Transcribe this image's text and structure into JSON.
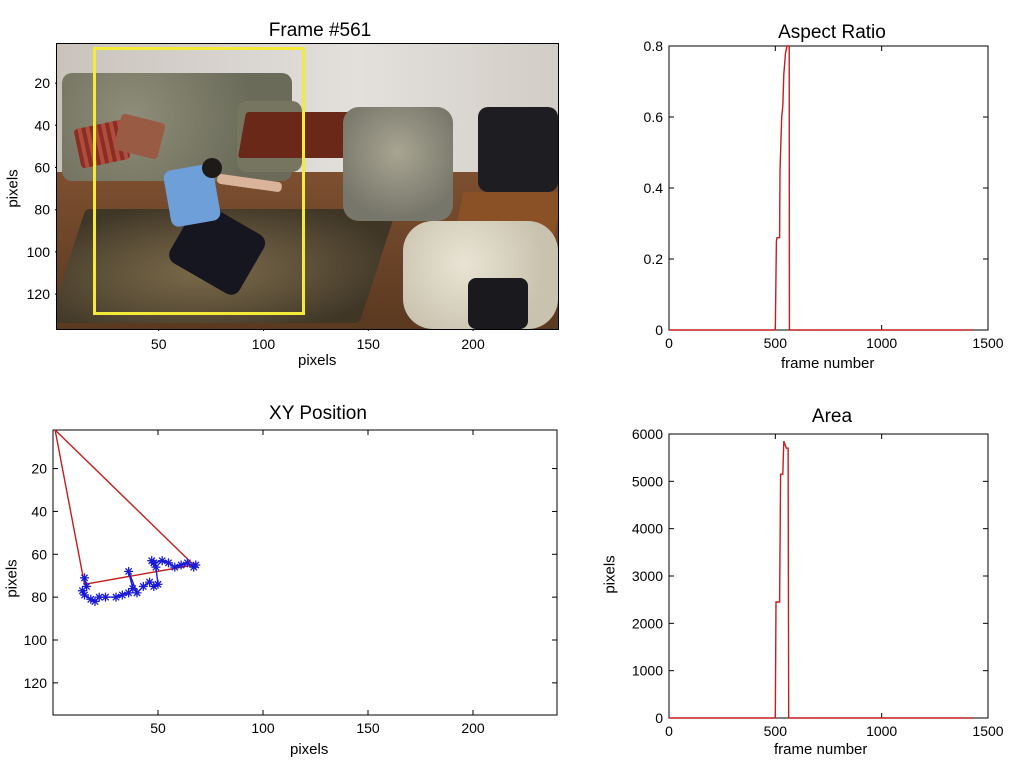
{
  "colors": {
    "line_red": "#c41e1e",
    "marker_blue": "#1a1ad6",
    "bbox_yellow": "#f3ea3a"
  },
  "frame_panel": {
    "title": "Frame #561",
    "xlabel": "pixels",
    "ylabel": "pixels",
    "xticks": [
      "50",
      "100",
      "150",
      "200"
    ],
    "yticks": [
      "20",
      "40",
      "60",
      "80",
      "100",
      "120"
    ]
  },
  "chart_data": [
    {
      "type": "line",
      "title": "Aspect Ratio",
      "xlabel": "frame number",
      "ylabel": "",
      "xlim": [
        0,
        1500
      ],
      "ylim": [
        0,
        0.8
      ],
      "xticks": [
        0,
        500,
        1000,
        1500
      ],
      "yticks": [
        0,
        0.2,
        0.4,
        0.6,
        0.8
      ],
      "grid": false,
      "series": [
        {
          "color": "#c41e1e",
          "x": [
            0,
            500,
            505,
            508,
            520,
            522,
            530,
            535,
            540,
            548,
            555,
            560,
            565,
            566,
            1430
          ],
          "y": [
            0,
            0,
            0.25,
            0.26,
            0.26,
            0.45,
            0.6,
            0.63,
            0.72,
            0.78,
            0.8,
            0.8,
            0.8,
            0,
            0
          ]
        }
      ]
    },
    {
      "type": "scatter",
      "title": "XY Position",
      "xlabel": "pixels",
      "ylabel": "pixels",
      "xlim": [
        0,
        240
      ],
      "ylim": [
        135,
        2
      ],
      "xticks": [
        50,
        100,
        150,
        200
      ],
      "yticks": [
        20,
        40,
        60,
        80,
        100,
        120
      ],
      "grid": false,
      "series": [
        {
          "color": "#c41e1e",
          "marker": "none",
          "x": [
            1,
            67,
            15,
            1
          ],
          "y": [
            2,
            65,
            74,
            2
          ]
        },
        {
          "color": "#1a1ad6",
          "marker": "*",
          "x": [
            15,
            16,
            14,
            15,
            18,
            20,
            22,
            25,
            30,
            33,
            36,
            38,
            36,
            40,
            43,
            46,
            48,
            50,
            49,
            47,
            48,
            52,
            55,
            58,
            61,
            64,
            67,
            68
          ],
          "y": [
            71,
            75,
            77,
            79,
            81,
            82,
            80,
            80,
            80,
            79,
            78,
            76,
            68,
            78,
            75,
            73,
            75,
            74,
            66,
            63,
            64,
            63,
            64,
            66,
            65,
            64,
            66,
            65
          ]
        }
      ]
    },
    {
      "type": "line",
      "title": "Area",
      "xlabel": "frame number",
      "ylabel": "pixels",
      "xlim": [
        0,
        1500
      ],
      "ylim": [
        0,
        6000
      ],
      "xticks": [
        0,
        500,
        1000,
        1500
      ],
      "yticks": [
        0,
        1000,
        2000,
        3000,
        4000,
        5000,
        6000
      ],
      "grid": false,
      "series": [
        {
          "color": "#c41e1e",
          "x": [
            0,
            500,
            503,
            520,
            525,
            535,
            540,
            548,
            552,
            560,
            563,
            1430
          ],
          "y": [
            0,
            0,
            2450,
            2450,
            5150,
            5150,
            5850,
            5750,
            5700,
            5700,
            0,
            0
          ]
        }
      ]
    }
  ]
}
